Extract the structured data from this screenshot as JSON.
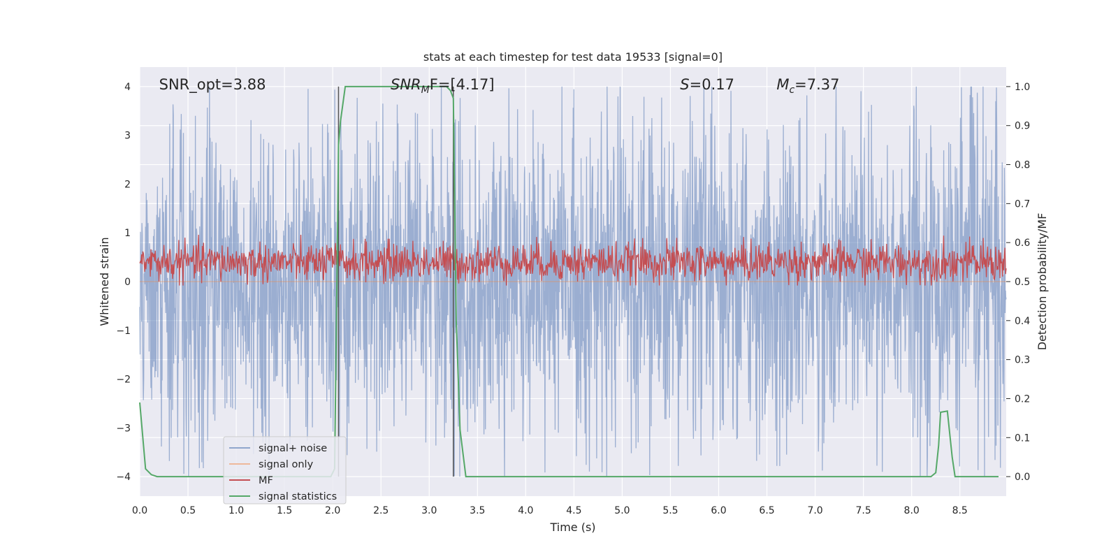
{
  "chart_data": {
    "type": "line",
    "title": "stats at each timestep for test data 19533 [signal=0]",
    "xlabel": "Time (s)",
    "ylabel": "Whitened strain",
    "ylabel_right": "Detection probability/MF",
    "xlim": [
      0,
      8.98
    ],
    "ylim": [
      -4.4,
      4.4
    ],
    "ylim_right": [
      -0.05,
      1.05
    ],
    "x_ticks": [
      0.0,
      0.5,
      1.0,
      1.5,
      2.0,
      2.5,
      3.0,
      3.5,
      4.0,
      4.5,
      5.0,
      5.5,
      6.0,
      6.5,
      7.0,
      7.5,
      8.0,
      8.5
    ],
    "x_tick_labels": [
      "0.0",
      "0.5",
      "1.0",
      "1.5",
      "2.0",
      "2.5",
      "3.0",
      "3.5",
      "4.0",
      "4.5",
      "5.0",
      "5.5",
      "6.0",
      "6.5",
      "7.0",
      "7.5",
      "8.0",
      "8.5"
    ],
    "y_ticks": [
      -4,
      -3,
      -2,
      -1,
      0,
      1,
      2,
      3,
      4
    ],
    "y_tick_labels": [
      "−4",
      "−3",
      "−2",
      "−1",
      "0",
      "1",
      "2",
      "3",
      "4"
    ],
    "y_ticks_right": [
      0.0,
      0.1,
      0.2,
      0.3,
      0.4,
      0.5,
      0.6,
      0.7,
      0.8,
      0.9,
      1.0
    ],
    "y_tick_labels_right": [
      "0.0",
      "0.1",
      "0.2",
      "0.3",
      "0.4",
      "0.5",
      "0.6",
      "0.7",
      "0.8",
      "0.9",
      "1.0"
    ],
    "grid": true,
    "legend_position": "lower-left",
    "annotations": [
      {
        "text": "SNR_opt=3.88",
        "x": 0.2,
        "y": 4.0
      },
      {
        "text": "SNR_MF=[4.17]",
        "math": "SNR",
        "sub": "M",
        "rest": "F=[4.17]",
        "x": 2.6,
        "y": 4.0
      },
      {
        "text": "S=0.17",
        "math": "S",
        "rest": "=0.17",
        "x": 5.6,
        "y": 4.0
      },
      {
        "text": "M_c=7.37",
        "math": "M",
        "sub": "c",
        "rest": "=7.37",
        "x": 6.6,
        "y": 4.0
      }
    ],
    "vlines": [
      2.06,
      3.25
    ],
    "series": [
      {
        "name": "signal+ noise",
        "color": "#4c72b0",
        "alpha": 0.5,
        "axis": "left",
        "kind": "noise",
        "envelope": [
          -4.0,
          4.0
        ],
        "typical_amplitude": 1.6
      },
      {
        "name": "signal only",
        "color": "#dd8452",
        "alpha": 0.5,
        "axis": "left",
        "kind": "constant",
        "value": 0.0
      },
      {
        "name": "MF",
        "color": "#c44e52",
        "axis": "right",
        "kind": "noise",
        "center": 0.55,
        "range": [
          0.49,
          0.62
        ]
      },
      {
        "name": "signal statistics",
        "color": "#55a868",
        "axis": "right",
        "kind": "line",
        "x": [
          0.0,
          0.06,
          0.12,
          0.18,
          0.3,
          1.5,
          1.98,
          2.02,
          2.06,
          2.08,
          2.13,
          2.5,
          3.0,
          3.18,
          3.22,
          3.25,
          3.28,
          3.32,
          3.38,
          3.5,
          5.0,
          8.0,
          8.2,
          8.25,
          8.28,
          8.3,
          8.37,
          8.42,
          8.45,
          8.55,
          8.9
        ],
        "y": [
          0.19,
          0.02,
          0.005,
          0.0,
          0.0,
          0.0,
          0.0,
          0.02,
          0.85,
          0.91,
          1.0,
          1.0,
          1.0,
          1.0,
          0.99,
          0.97,
          0.4,
          0.12,
          0.0,
          0.0,
          0.0,
          0.0,
          0.0,
          0.01,
          0.08,
          0.165,
          0.168,
          0.05,
          0.0,
          0.0,
          0.0
        ]
      }
    ]
  },
  "legend": {
    "items": [
      {
        "label": "signal+ noise",
        "color": "#8fa6cc"
      },
      {
        "label": "signal only",
        "color": "#eeb89a"
      },
      {
        "label": "MF",
        "color": "#c44e52"
      },
      {
        "label": "signal statistics",
        "color": "#55a868"
      }
    ]
  },
  "theme": {
    "plot_background": "#eaeaf2",
    "grid_color": "#ffffff",
    "vline_color": "#555555"
  }
}
